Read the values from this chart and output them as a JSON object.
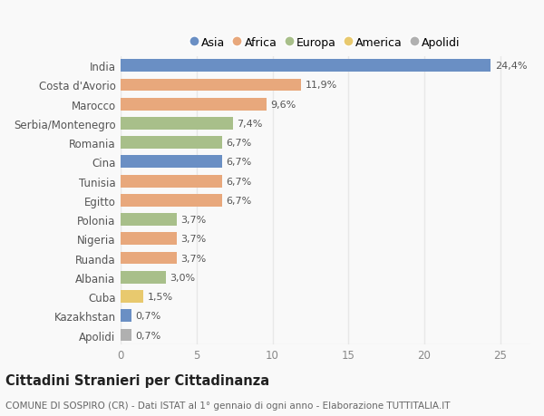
{
  "categories": [
    "India",
    "Costa d'Avorio",
    "Marocco",
    "Serbia/Montenegro",
    "Romania",
    "Cina",
    "Tunisia",
    "Egitto",
    "Polonia",
    "Nigeria",
    "Ruanda",
    "Albania",
    "Cuba",
    "Kazakhstan",
    "Apolidi"
  ],
  "values": [
    24.4,
    11.9,
    9.6,
    7.4,
    6.7,
    6.7,
    6.7,
    6.7,
    3.7,
    3.7,
    3.7,
    3.0,
    1.5,
    0.7,
    0.7
  ],
  "labels": [
    "24,4%",
    "11,9%",
    "9,6%",
    "7,4%",
    "6,7%",
    "6,7%",
    "6,7%",
    "6,7%",
    "3,7%",
    "3,7%",
    "3,7%",
    "3,0%",
    "1,5%",
    "0,7%",
    "0,7%"
  ],
  "colors": [
    "#6a8fc4",
    "#e8a87c",
    "#e8a87c",
    "#a8bf8a",
    "#a8bf8a",
    "#6a8fc4",
    "#e8a87c",
    "#e8a87c",
    "#a8bf8a",
    "#e8a87c",
    "#e8a87c",
    "#a8bf8a",
    "#e8c96e",
    "#6a8fc4",
    "#b0b0b0"
  ],
  "legend_labels": [
    "Asia",
    "Africa",
    "Europa",
    "America",
    "Apolidi"
  ],
  "legend_colors": [
    "#6a8fc4",
    "#e8a87c",
    "#a8bf8a",
    "#e8c96e",
    "#b0b0b0"
  ],
  "title": "Cittadini Stranieri per Cittadinanza",
  "subtitle": "COMUNE DI SOSPIRO (CR) - Dati ISTAT al 1° gennaio di ogni anno - Elaborazione TUTTITALIA.IT",
  "xlim": [
    0,
    27
  ],
  "xticks": [
    0,
    5,
    10,
    15,
    20,
    25
  ],
  "background_color": "#f9f9f9",
  "bar_height": 0.65,
  "grid_color": "#e8e8e8",
  "label_fontsize": 8,
  "tick_fontsize": 8.5,
  "title_fontsize": 10.5,
  "subtitle_fontsize": 7.5
}
